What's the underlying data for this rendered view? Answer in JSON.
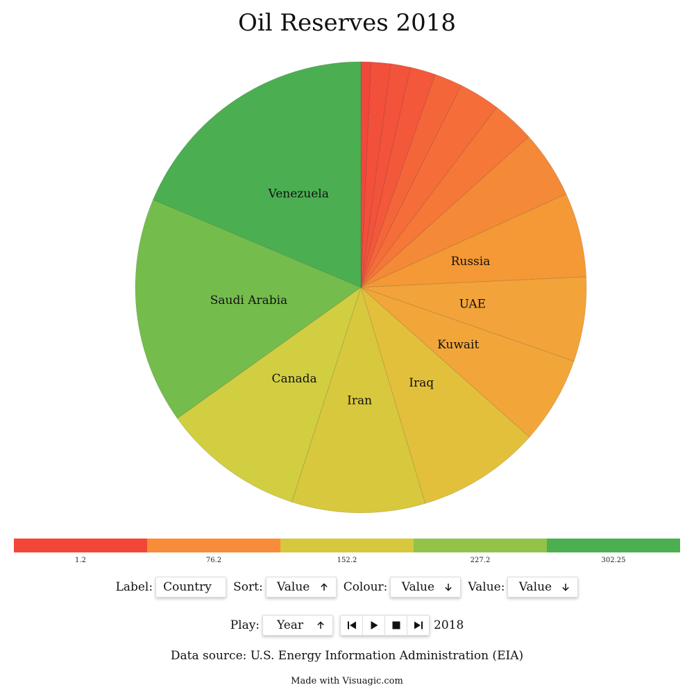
{
  "title": "Oil Reserves 2018",
  "chart_data": {
    "type": "pie",
    "title": "Oil Reserves 2018",
    "slices": [
      {
        "label": "",
        "value": 3.0,
        "color": "#f2473b"
      },
      {
        "label": "",
        "value": 5.8,
        "color": "#f2503b"
      },
      {
        "label": "",
        "value": 5.8,
        "color": "#f2533a"
      },
      {
        "label": "",
        "value": 7.5,
        "color": "#f3583a"
      },
      {
        "label": "",
        "value": 8.2,
        "color": "#f4663a"
      },
      {
        "label": "",
        "value": 12.2,
        "color": "#f56d39"
      },
      {
        "label": "",
        "value": 12.7,
        "color": "#f57838"
      },
      {
        "label": "",
        "value": 20.0,
        "color": "#f48a37"
      },
      {
        "label": "Russia",
        "value": 25.0,
        "color": "#f49936"
      },
      {
        "label": "UAE",
        "value": 25.0,
        "color": "#f2a33a"
      },
      {
        "label": "Kuwait",
        "value": 25.8,
        "color": "#f2a63a"
      },
      {
        "label": "Iraq",
        "value": 36.5,
        "color": "#e3c03c"
      },
      {
        "label": "Iran",
        "value": 39.5,
        "color": "#d8c83d"
      },
      {
        "label": "Canada",
        "value": 42.0,
        "color": "#d1ce42"
      },
      {
        "label": "Saudi Arabia",
        "value": 67.0,
        "color": "#74bd4d"
      },
      {
        "label": "Venezuela",
        "value": 77.0,
        "color": "#4baf52"
      }
    ]
  },
  "legend": {
    "colors": [
      "#f44539",
      "#f88c38",
      "#d7c73d",
      "#92c348",
      "#4caf50"
    ],
    "ticks": [
      "1.2",
      "76.2",
      "152.2",
      "227.2",
      "302.25"
    ]
  },
  "controls": {
    "label_caption": "Label:",
    "label_value": "Country",
    "sort_caption": "Sort:",
    "sort_value": "Value",
    "sort_dir": "up",
    "colour_caption": "Colour:",
    "colour_value": "Value",
    "colour_dir": "down",
    "value_caption": "Value:",
    "value_value": "Value",
    "value_dir": "down",
    "play_caption": "Play:",
    "play_value": "Year",
    "play_dir": "up",
    "current_year": "2018"
  },
  "footer": {
    "data_source": "Data source: U.S. Energy Information Administration (EIA)",
    "made_with": "Made with Visuagic.com"
  }
}
